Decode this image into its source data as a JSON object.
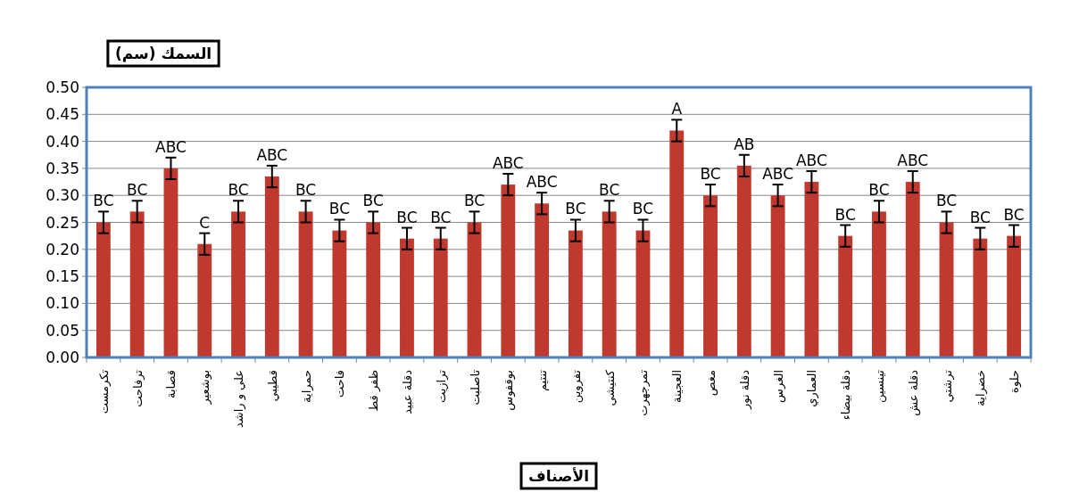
{
  "chart_data": {
    "type": "bar",
    "title": "السمك (سم)",
    "xlabel": "الأصناف",
    "categories": [
      "تكرمست",
      "ترفاحت",
      "قصابة",
      "بوشعير",
      "علي و راشد",
      "قطيبي",
      "حمراية",
      "فاحت",
      "ظفر قط",
      "دقلة عبيد",
      "ترازيت",
      "تاصلبت",
      "بوقفوس",
      "تنتيم",
      "تفروين",
      "كنتيشي",
      "تمرجهرت",
      "العجينة",
      "مغص",
      "دقلة نور",
      "الغرس",
      "العماري",
      "دقلة بيضاء",
      "تينسين",
      "دقلة عش",
      "ترشتي",
      "خضراية",
      "حلوة"
    ],
    "series": [
      {
        "color": "#c0392f",
        "values": [
          0.25,
          0.27,
          0.35,
          0.21,
          0.27,
          0.335,
          0.27,
          0.235,
          0.25,
          0.22,
          0.22,
          0.25,
          0.32,
          0.285,
          0.235,
          0.27,
          0.235,
          0.42,
          0.3,
          0.355,
          0.3,
          0.325,
          0.225,
          0.27,
          0.325,
          0.25,
          0.22,
          0.225
        ],
        "errors": [
          0.02,
          0.02,
          0.02,
          0.02,
          0.02,
          0.02,
          0.02,
          0.02,
          0.02,
          0.02,
          0.02,
          0.02,
          0.02,
          0.02,
          0.02,
          0.02,
          0.02,
          0.02,
          0.02,
          0.02,
          0.02,
          0.02,
          0.02,
          0.02,
          0.02,
          0.02,
          0.02,
          0.02
        ],
        "value_labels": [
          "BC",
          "BC",
          "ABC",
          "C",
          "BC",
          "ABC",
          "BC",
          "BC",
          "BC",
          "BC",
          "BC",
          "BC",
          "ABC",
          "ABC",
          "BC",
          "BC",
          "BC",
          "A",
          "BC",
          "AB",
          "ABC",
          "ABC",
          "BC",
          "BC",
          "ABC",
          "BC",
          "BC",
          "BC"
        ]
      }
    ],
    "ylim": [
      0,
      0.5
    ],
    "yticks": [
      {
        "value": 0,
        "label": "0.00"
      },
      {
        "value": 0.05,
        "label": "0.05"
      },
      {
        "value": 0.1,
        "label": "0.10"
      },
      {
        "value": 0.15,
        "label": "0.15"
      },
      {
        "value": 0.2,
        "label": "0.20"
      },
      {
        "value": 0.25,
        "label": "0.25"
      },
      {
        "value": 0.3,
        "label": "0.30"
      },
      {
        "value": 0.35,
        "label": "0.35"
      },
      {
        "value": 0.4,
        "label": "0.40"
      },
      {
        "value": 0.45,
        "label": "0.45"
      },
      {
        "value": 0.5,
        "label": "0.50"
      }
    ],
    "grid": "y"
  }
}
